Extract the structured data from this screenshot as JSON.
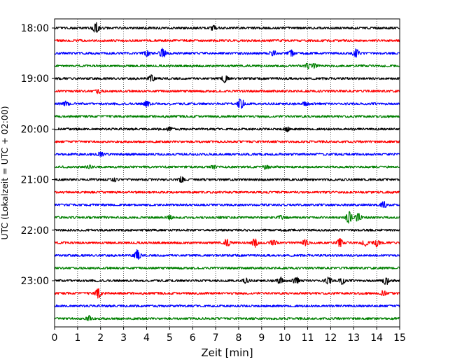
{
  "chart_data": {
    "type": "line",
    "title": "",
    "xlabel": "Zeit  [min]",
    "ylabel": "UTC (Lokalzeit = UTC + 02:00)",
    "xlim": [
      0,
      15
    ],
    "x_ticks": [
      0,
      1,
      2,
      3,
      4,
      5,
      6,
      7,
      8,
      9,
      10,
      11,
      12,
      13,
      14,
      15
    ],
    "y_hour_labels": [
      "18:00",
      "19:00",
      "20:00",
      "21:00",
      "22:00",
      "23:00"
    ],
    "trace_interval_minutes": 15,
    "grid": "vertical dotted at each minute",
    "legend": "none",
    "trace_colors": [
      "#000000",
      "#ff0000",
      "#0000ff",
      "#008000"
    ],
    "series": [
      {
        "start": "18:00",
        "color": "#000000",
        "events": [
          [
            1.8,
            0.9
          ],
          [
            6.9,
            0.35
          ]
        ]
      },
      {
        "start": "18:15",
        "color": "#ff0000",
        "events": []
      },
      {
        "start": "18:30",
        "color": "#0000ff",
        "events": [
          [
            4.0,
            0.45
          ],
          [
            4.7,
            0.7
          ],
          [
            9.5,
            0.4
          ],
          [
            10.3,
            0.45
          ],
          [
            13.1,
            0.6
          ]
        ]
      },
      {
        "start": "18:45",
        "color": "#008000",
        "events": [
          [
            11.0,
            0.4
          ],
          [
            11.3,
            0.3
          ]
        ]
      },
      {
        "start": "19:00",
        "color": "#000000",
        "events": [
          [
            4.2,
            0.5
          ],
          [
            7.4,
            0.6
          ]
        ]
      },
      {
        "start": "19:15",
        "color": "#ff0000",
        "events": [
          [
            1.9,
            0.3
          ]
        ]
      },
      {
        "start": "19:30",
        "color": "#0000ff",
        "events": [
          [
            0.5,
            0.3
          ],
          [
            4.0,
            0.45
          ],
          [
            8.1,
            0.9
          ],
          [
            10.9,
            0.3
          ]
        ]
      },
      {
        "start": "19:45",
        "color": "#008000",
        "events": []
      },
      {
        "start": "20:00",
        "color": "#000000",
        "events": [
          [
            5.0,
            0.25
          ],
          [
            10.1,
            0.3
          ]
        ]
      },
      {
        "start": "20:15",
        "color": "#ff0000",
        "events": []
      },
      {
        "start": "20:30",
        "color": "#0000ff",
        "events": [
          [
            2.0,
            0.35
          ]
        ]
      },
      {
        "start": "20:45",
        "color": "#008000",
        "events": [
          [
            1.5,
            0.25
          ],
          [
            6.9,
            0.25
          ],
          [
            9.2,
            0.3
          ]
        ]
      },
      {
        "start": "21:00",
        "color": "#000000",
        "events": [
          [
            2.6,
            0.3
          ],
          [
            5.5,
            0.4
          ]
        ]
      },
      {
        "start": "21:15",
        "color": "#ff0000",
        "events": []
      },
      {
        "start": "21:30",
        "color": "#0000ff",
        "events": [
          [
            14.3,
            0.45
          ]
        ]
      },
      {
        "start": "21:45",
        "color": "#008000",
        "events": [
          [
            5.0,
            0.25
          ],
          [
            9.8,
            0.3
          ],
          [
            12.8,
            0.9
          ],
          [
            13.2,
            0.6
          ]
        ]
      },
      {
        "start": "22:00",
        "color": "#000000",
        "events": []
      },
      {
        "start": "22:15",
        "color": "#ff0000",
        "events": [
          [
            7.5,
            0.55
          ],
          [
            8.7,
            0.6
          ],
          [
            9.5,
            0.5
          ],
          [
            10.9,
            0.5
          ],
          [
            12.4,
            0.55
          ],
          [
            13.5,
            0.4
          ],
          [
            14.0,
            0.55
          ]
        ]
      },
      {
        "start": "22:30",
        "color": "#0000ff",
        "events": [
          [
            3.6,
            0.8
          ]
        ]
      },
      {
        "start": "22:45",
        "color": "#008000",
        "events": []
      },
      {
        "start": "23:00",
        "color": "#000000",
        "events": [
          [
            8.3,
            0.35
          ],
          [
            9.8,
            0.55
          ],
          [
            10.5,
            0.5
          ],
          [
            11.9,
            0.5
          ],
          [
            12.5,
            0.5
          ],
          [
            14.4,
            0.6
          ]
        ]
      },
      {
        "start": "23:15",
        "color": "#ff0000",
        "events": [
          [
            1.9,
            0.75
          ],
          [
            14.3,
            0.35
          ]
        ]
      },
      {
        "start": "23:30",
        "color": "#0000ff",
        "events": []
      },
      {
        "start": "23:45",
        "color": "#008000",
        "events": [
          [
            1.5,
            0.4
          ]
        ]
      }
    ]
  }
}
